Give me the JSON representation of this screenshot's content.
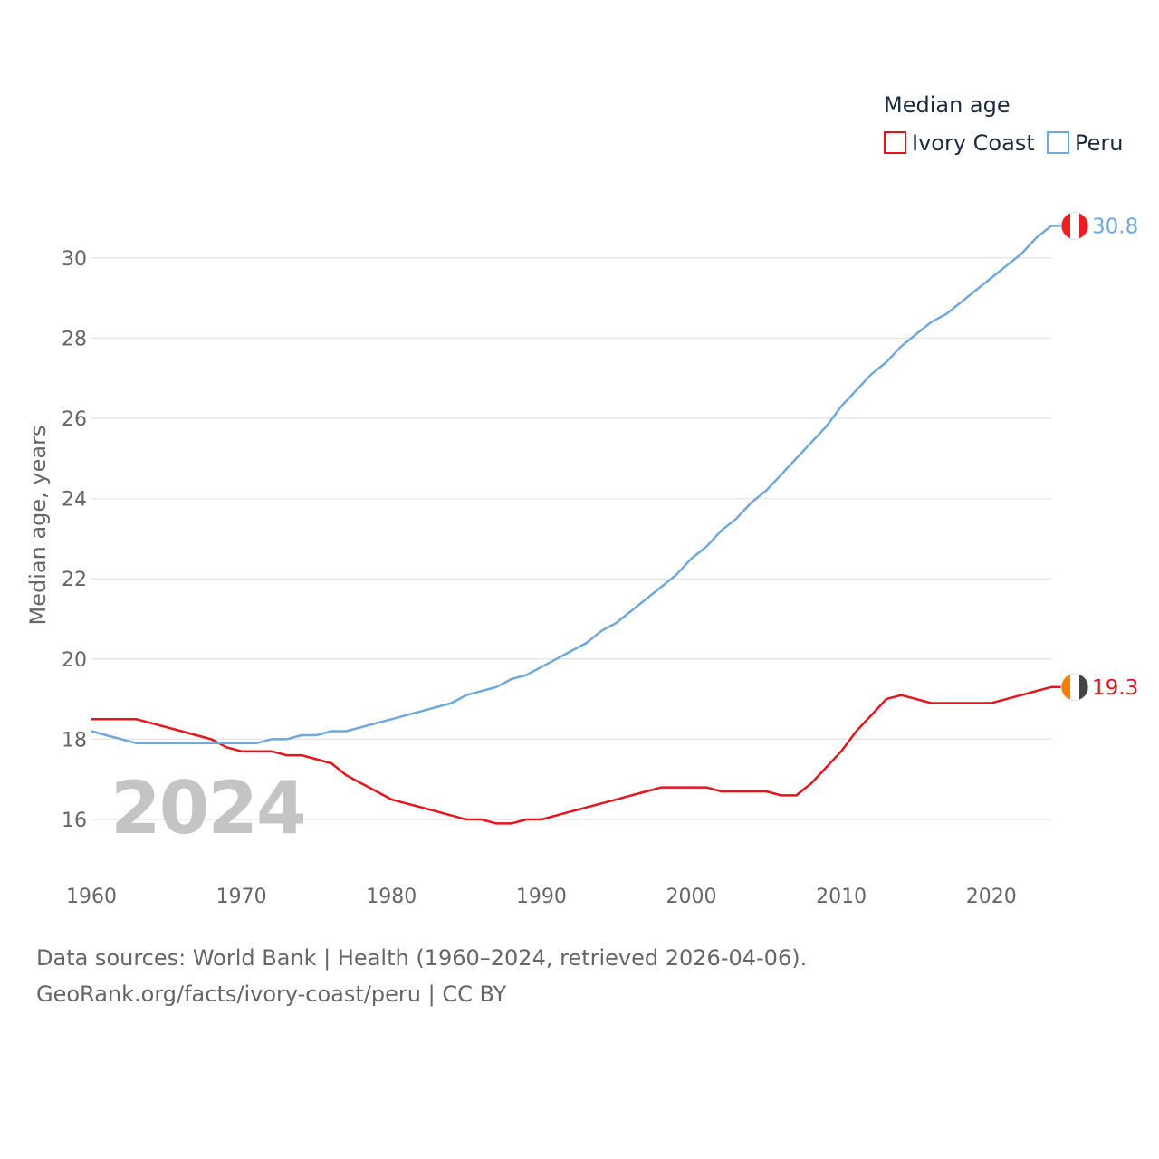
{
  "chart_data": {
    "type": "line",
    "legend_title": "Median age",
    "ylabel": "Median age, years",
    "xlabel": "",
    "xlim": [
      1960,
      2024
    ],
    "ylim": [
      15,
      31.5
    ],
    "x_ticks": [
      1960,
      1970,
      1980,
      1990,
      2000,
      2010,
      2020
    ],
    "y_ticks": [
      16,
      18,
      20,
      22,
      24,
      26,
      28,
      30
    ],
    "current_year": "2024",
    "legend_position": "top-right",
    "x": [
      1960,
      1961,
      1962,
      1963,
      1964,
      1965,
      1966,
      1967,
      1968,
      1969,
      1970,
      1971,
      1972,
      1973,
      1974,
      1975,
      1976,
      1977,
      1978,
      1979,
      1980,
      1981,
      1982,
      1983,
      1984,
      1985,
      1986,
      1987,
      1988,
      1989,
      1990,
      1991,
      1992,
      1993,
      1994,
      1995,
      1996,
      1997,
      1998,
      1999,
      2000,
      2001,
      2002,
      2003,
      2004,
      2005,
      2006,
      2007,
      2008,
      2009,
      2010,
      2011,
      2012,
      2013,
      2014,
      2015,
      2016,
      2017,
      2018,
      2019,
      2020,
      2021,
      2022,
      2023,
      2024
    ],
    "series": [
      {
        "name": "Ivory Coast",
        "color": "#e8141b",
        "end_label": "19.3",
        "values": [
          18.5,
          18.5,
          18.5,
          18.5,
          18.4,
          18.3,
          18.2,
          18.1,
          18.0,
          17.8,
          17.7,
          17.7,
          17.7,
          17.6,
          17.6,
          17.5,
          17.4,
          17.1,
          16.9,
          16.7,
          16.5,
          16.4,
          16.3,
          16.2,
          16.1,
          16.0,
          16.0,
          15.9,
          15.9,
          16.0,
          16.0,
          16.1,
          16.2,
          16.3,
          16.4,
          16.5,
          16.6,
          16.7,
          16.8,
          16.8,
          16.8,
          16.8,
          16.7,
          16.7,
          16.7,
          16.7,
          16.6,
          16.6,
          16.9,
          17.3,
          17.7,
          18.2,
          18.6,
          19.0,
          19.1,
          19.0,
          18.9,
          18.9,
          18.9,
          18.9,
          18.9,
          19.0,
          19.1,
          19.2,
          19.3
        ]
      },
      {
        "name": "Peru",
        "color": "#6fa8dc",
        "end_label": "30.8",
        "values": [
          18.2,
          18.1,
          18.0,
          17.9,
          17.9,
          17.9,
          17.9,
          17.9,
          17.9,
          17.9,
          17.9,
          17.9,
          18.0,
          18.0,
          18.1,
          18.1,
          18.2,
          18.2,
          18.3,
          18.4,
          18.5,
          18.6,
          18.7,
          18.8,
          18.9,
          19.1,
          19.2,
          19.3,
          19.5,
          19.6,
          19.8,
          20.0,
          20.2,
          20.4,
          20.7,
          20.9,
          21.2,
          21.5,
          21.8,
          22.1,
          22.5,
          22.8,
          23.2,
          23.5,
          23.9,
          24.2,
          24.6,
          25.0,
          25.4,
          25.8,
          26.3,
          26.7,
          27.1,
          27.4,
          27.8,
          28.1,
          28.4,
          28.6,
          28.9,
          29.2,
          29.5,
          29.8,
          30.1,
          30.5,
          30.8
        ]
      }
    ]
  },
  "footer": {
    "line1": "Data sources: World Bank | Health (1960–2024, retrieved 2026-04-06).",
    "line2": "GeoRank.org/facts/ivory-coast/peru | CC BY"
  }
}
